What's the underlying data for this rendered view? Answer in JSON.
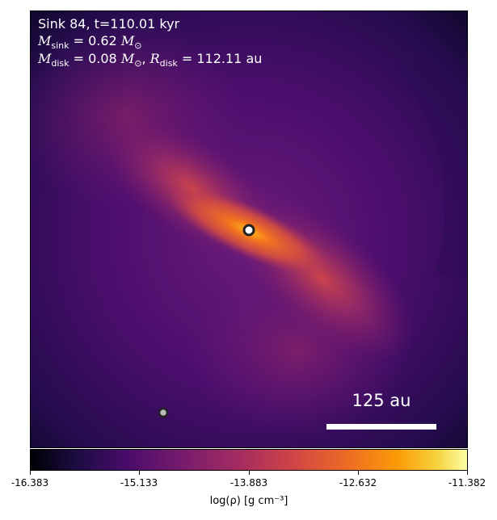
{
  "annotation": {
    "line1": "Sink 84, t=110.01 kyr",
    "m_sink_symbol": "M",
    "m_sink_sub": "sink",
    "m_sink_value": " = 0.62 ",
    "m_disk_symbol": "M",
    "m_disk_sub": "disk",
    "m_disk_value": " = 0.08 ",
    "r_disk_symbol": "R",
    "r_disk_sub": "disk",
    "r_disk_value": " = 112.11 au",
    "msun_symbol": "M",
    "msun_sub": "⊙"
  },
  "scale_bar": {
    "label": "125 au"
  },
  "colorbar": {
    "ticks": [
      "-16.383",
      "-15.133",
      "-13.883",
      "-12.632",
      "-11.382"
    ],
    "label": "log(ρ) [g cm⁻³]",
    "colormap": "inferno"
  },
  "sinks": [
    {
      "name": "primary-sink",
      "color": "#ffffff"
    },
    {
      "name": "secondary-sink",
      "color": "#bbbbbb"
    }
  ]
}
